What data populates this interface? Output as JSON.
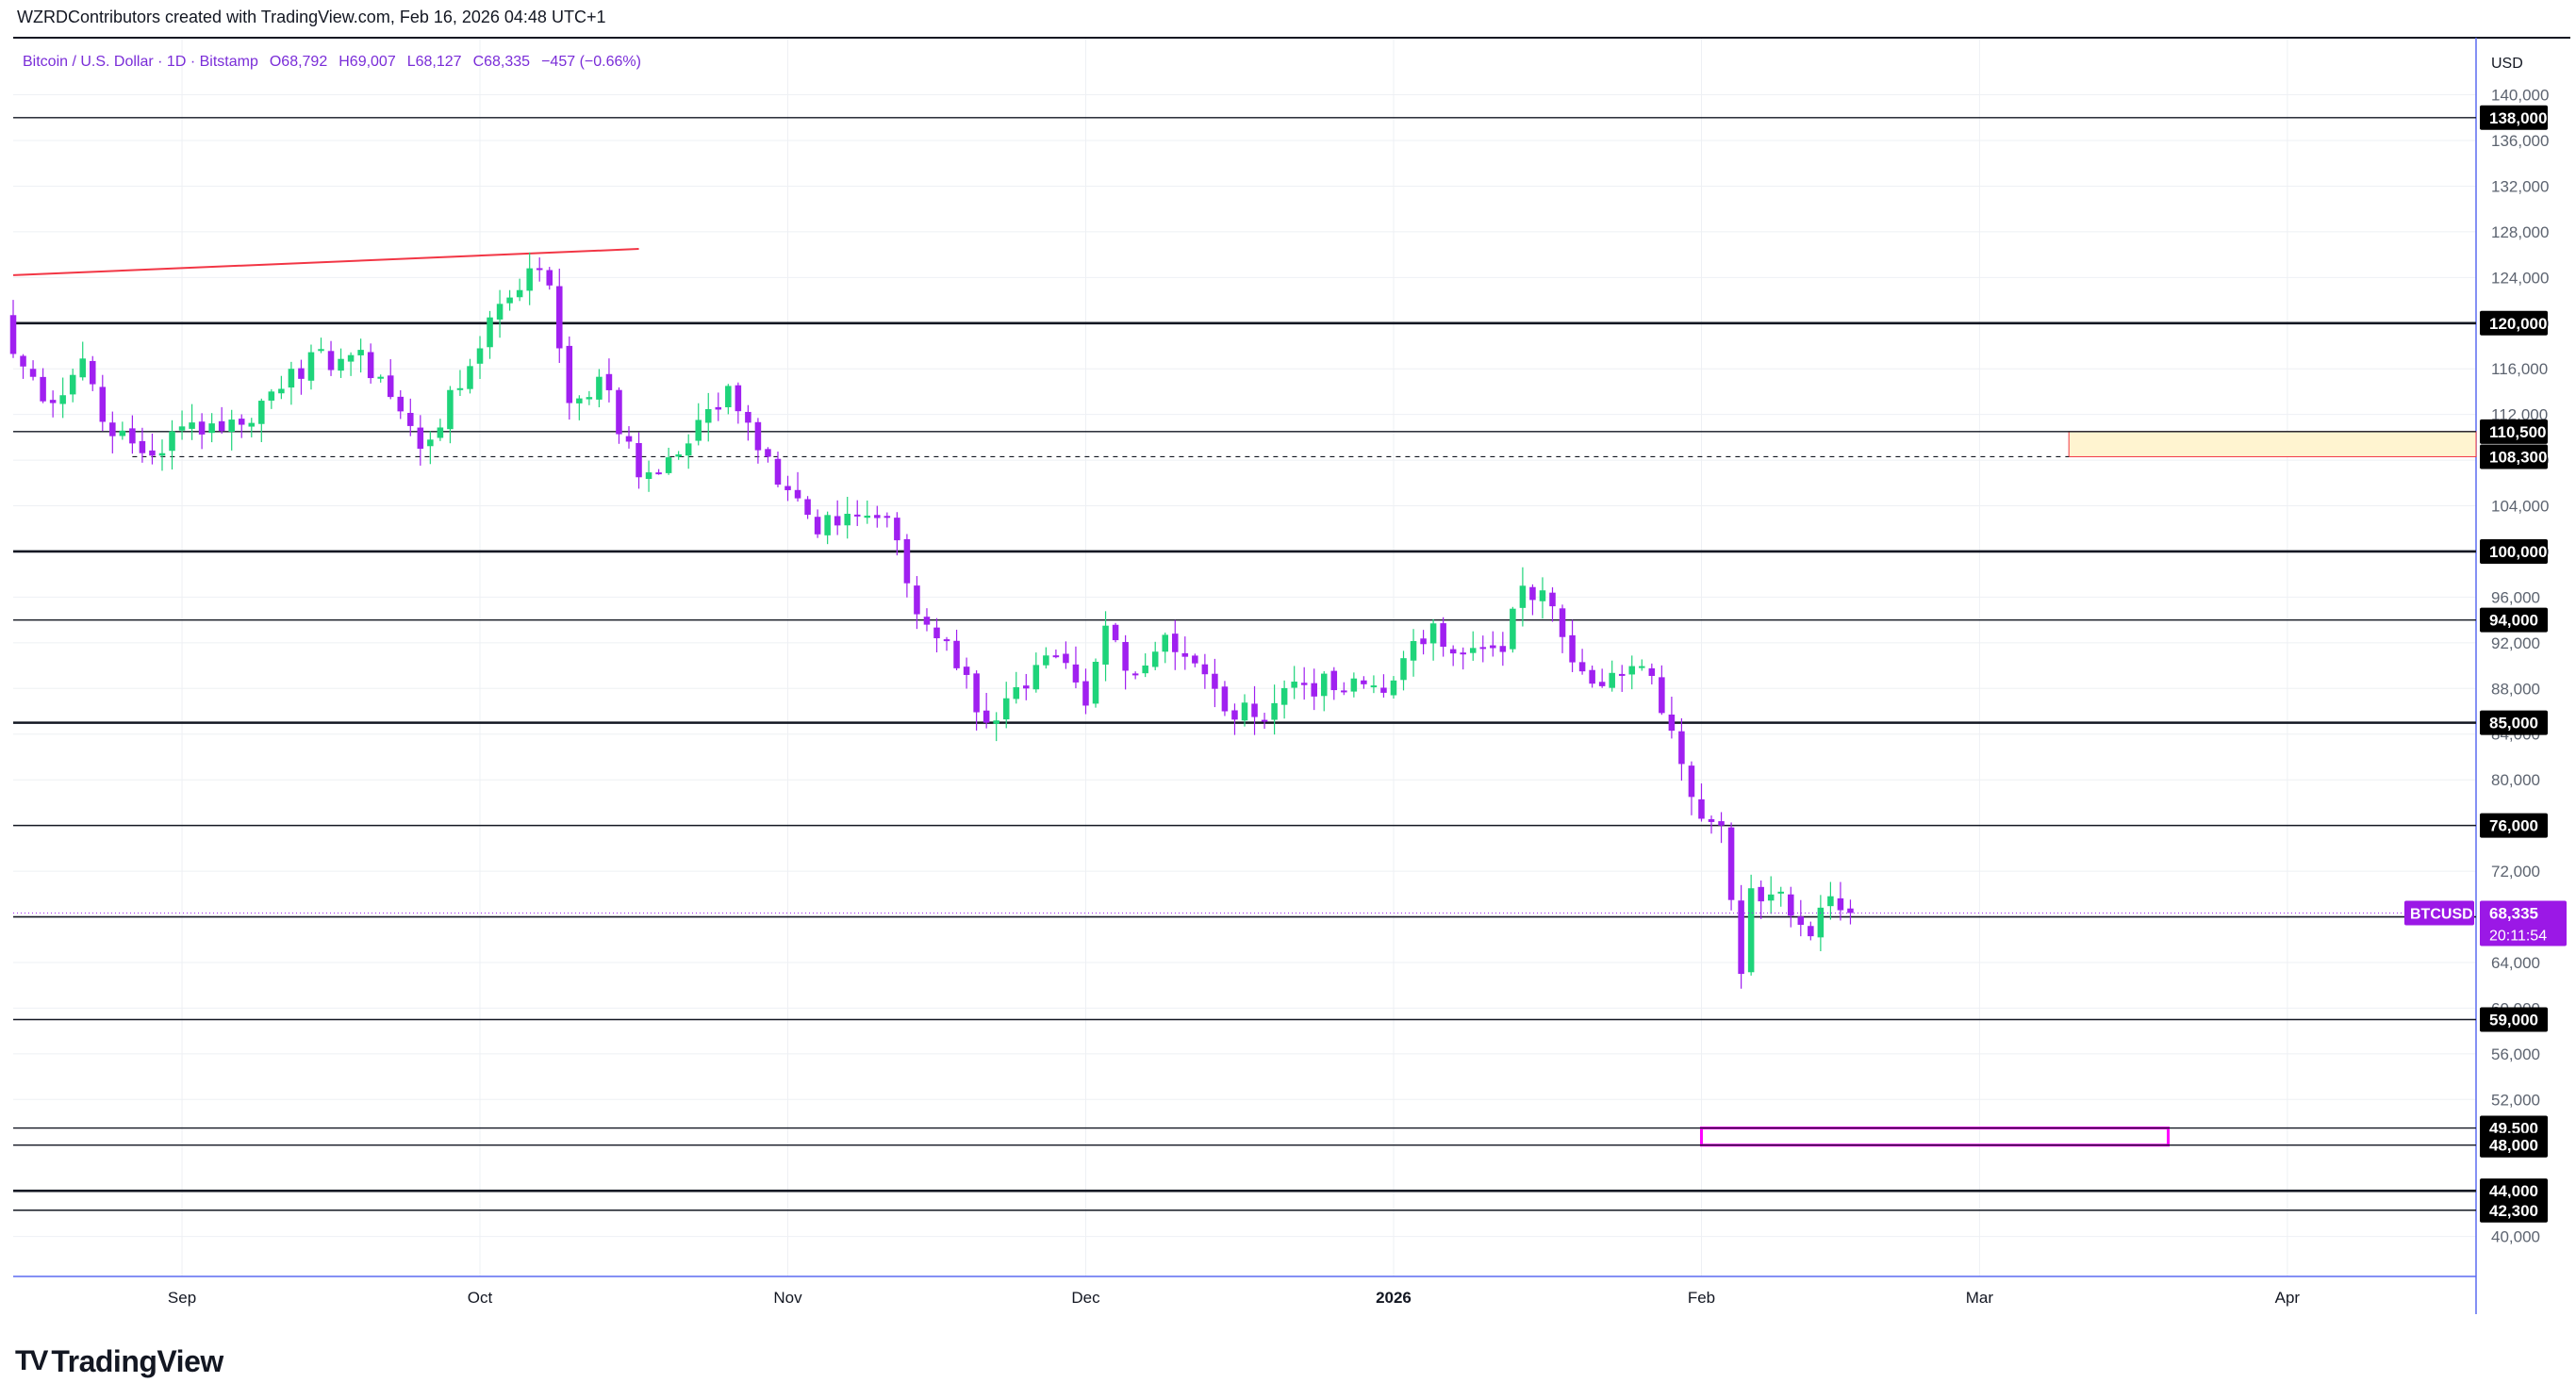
{
  "attribution": "WZRDContributors created with TradingView.com, Feb 16, 2026 04:48 UTC+1",
  "brand": "TradingView",
  "legend_line": {
    "symbol": "Bitcoin / U.S. Dollar · 1D · Bitstamp",
    "open": "O68,792",
    "high": "H69,007",
    "low": "L68,127",
    "close": "C68,335",
    "change": "−457 (−0.66%)"
  },
  "colors": {
    "up": "#1ed47a",
    "down": "#a020f0",
    "trendline": "#f23645",
    "box_upper_fill": "#fff4d0",
    "box_upper_stroke": "#f23645",
    "box_lower_stroke": "#ff00ff",
    "legend_text": "#7a2dd8",
    "price_label_bg": "#000000",
    "symbol_label_bg": "#9b18e6"
  },
  "chart_data": {
    "type": "candlestick",
    "currency_label": "USD",
    "ylim": [
      36500,
      145000
    ],
    "y_ticks": [
      40000,
      44000,
      48000,
      52000,
      56000,
      60000,
      64000,
      68000,
      72000,
      76000,
      80000,
      84000,
      88000,
      92000,
      96000,
      100000,
      104000,
      108000,
      112000,
      116000,
      120000,
      124000,
      128000,
      132000,
      136000,
      140000
    ],
    "y_tick_labels": [
      "40,000",
      "44,000",
      "48,000",
      "52,000",
      "56,000",
      "60,000",
      "64,000",
      "68,000",
      "72,000",
      "76,000",
      "80,000",
      "84,000",
      "88,000",
      "92,000",
      "96,000",
      "100,000",
      "104,000",
      "108,000",
      "112,000",
      "116,000",
      "120,000",
      "124,000",
      "128,000",
      "132,000",
      "136,000",
      "140,000"
    ],
    "x_start": "2025-08-15",
    "x_end": "2026-04-20",
    "x_labels": [
      {
        "date": "2025-09-01",
        "label": "Sep"
      },
      {
        "date": "2025-10-01",
        "label": "Oct"
      },
      {
        "date": "2025-11-01",
        "label": "Nov"
      },
      {
        "date": "2025-12-01",
        "label": "Dec"
      },
      {
        "date": "2026-01-01",
        "label": "2026"
      },
      {
        "date": "2026-02-01",
        "label": "Feb"
      },
      {
        "date": "2026-03-01",
        "label": "Mar"
      },
      {
        "date": "2026-04-01",
        "label": "Apr"
      }
    ],
    "horizontal_levels": [
      {
        "price": 138000,
        "label": "138,000",
        "weight": 1.4
      },
      {
        "price": 120000,
        "label": "120,000",
        "weight": 2.6
      },
      {
        "price": 110500,
        "label": "110,500",
        "weight": 1.4
      },
      {
        "price": 108300,
        "label": "108,300",
        "weight": 1.2,
        "dashed": true,
        "from": "2025-08-27",
        "to": "2026-03-10"
      },
      {
        "price": 100000,
        "label": "100,000",
        "weight": 2.6
      },
      {
        "price": 94000,
        "label": "94,000",
        "weight": 1.4
      },
      {
        "price": 85000,
        "label": "85,000",
        "weight": 2.6
      },
      {
        "price": 76000,
        "label": "76,000",
        "weight": 1.4
      },
      {
        "price": 68000,
        "label": "68,000",
        "weight": 1.6
      },
      {
        "price": 59000,
        "label": "59,000",
        "weight": 1.4
      },
      {
        "price": 49500,
        "label": "49,500",
        "weight": 1.4
      },
      {
        "price": 48000,
        "label": "48,000",
        "weight": 1.4
      },
      {
        "price": 44000,
        "label": "44,000",
        "weight": 2.6
      },
      {
        "price": 42300,
        "label": "42,300",
        "weight": 1.4
      }
    ],
    "trendline": {
      "from_date": "2025-08-15",
      "from_price": 124200,
      "to_date": "2025-10-17",
      "to_price": 126500
    },
    "zones": [
      {
        "from": "2026-03-10",
        "to": "2026-04-20",
        "top": 110500,
        "bottom": 108300,
        "kind": "upper"
      },
      {
        "from": "2026-02-01",
        "to": "2026-03-20",
        "top": 49500,
        "bottom": 48000,
        "kind": "lower"
      }
    ],
    "last_price": {
      "symbol": "BTCUSD",
      "price": 68335,
      "label": "68,335",
      "countdown": "20:11:54"
    },
    "closes": [
      {
        "date": "2025-08-15",
        "close": 117300
      },
      {
        "date": "2025-08-19",
        "close": 113000
      },
      {
        "date": "2025-08-22",
        "close": 116900
      },
      {
        "date": "2025-08-25",
        "close": 110100
      },
      {
        "date": "2025-08-29",
        "close": 108400
      },
      {
        "date": "2025-09-02",
        "close": 111300
      },
      {
        "date": "2025-09-07",
        "close": 111100
      },
      {
        "date": "2025-09-12",
        "close": 116000
      },
      {
        "date": "2025-09-18",
        "close": 117200
      },
      {
        "date": "2025-09-21",
        "close": 115300
      },
      {
        "date": "2025-09-25",
        "close": 109000
      },
      {
        "date": "2025-09-29",
        "close": 114300
      },
      {
        "date": "2025-10-02",
        "close": 120500
      },
      {
        "date": "2025-10-06",
        "close": 124800
      },
      {
        "date": "2025-10-08",
        "close": 123300
      },
      {
        "date": "2025-10-10",
        "close": 113000
      },
      {
        "date": "2025-10-13",
        "close": 115300
      },
      {
        "date": "2025-10-17",
        "close": 106500
      },
      {
        "date": "2025-10-21",
        "close": 108500
      },
      {
        "date": "2025-10-26",
        "close": 114500
      },
      {
        "date": "2025-10-30",
        "close": 108300
      },
      {
        "date": "2025-11-04",
        "close": 101500
      },
      {
        "date": "2025-11-07",
        "close": 103300
      },
      {
        "date": "2025-11-11",
        "close": 103000
      },
      {
        "date": "2025-11-14",
        "close": 94500
      },
      {
        "date": "2025-11-17",
        "close": 92200
      },
      {
        "date": "2025-11-21",
        "close": 85000
      },
      {
        "date": "2025-11-25",
        "close": 88000
      },
      {
        "date": "2025-11-28",
        "close": 90800
      },
      {
        "date": "2025-12-01",
        "close": 86500
      },
      {
        "date": "2025-12-03",
        "close": 93500
      },
      {
        "date": "2025-12-06",
        "close": 89300
      },
      {
        "date": "2025-12-09",
        "close": 92700
      },
      {
        "date": "2025-12-12",
        "close": 90200
      },
      {
        "date": "2025-12-15",
        "close": 86000
      },
      {
        "date": "2025-12-18",
        "close": 85500
      },
      {
        "date": "2025-12-22",
        "close": 88600
      },
      {
        "date": "2025-12-27",
        "close": 87800
      },
      {
        "date": "2026-01-01",
        "close": 88700
      },
      {
        "date": "2026-01-05",
        "close": 93700
      },
      {
        "date": "2026-01-08",
        "close": 91000
      },
      {
        "date": "2026-01-12",
        "close": 91200
      },
      {
        "date": "2026-01-14",
        "close": 97000
      },
      {
        "date": "2026-01-17",
        "close": 95200
      },
      {
        "date": "2026-01-20",
        "close": 89500
      },
      {
        "date": "2026-01-24",
        "close": 89200
      },
      {
        "date": "2026-01-27",
        "close": 89100
      },
      {
        "date": "2026-01-29",
        "close": 84300
      },
      {
        "date": "2026-01-31",
        "close": 78500
      },
      {
        "date": "2026-02-03",
        "close": 76000
      },
      {
        "date": "2026-02-05",
        "close": 63000
      },
      {
        "date": "2026-02-06",
        "close": 70500
      },
      {
        "date": "2026-02-09",
        "close": 70200
      },
      {
        "date": "2026-02-11",
        "close": 67300
      },
      {
        "date": "2026-02-12",
        "close": 66300
      },
      {
        "date": "2026-02-13",
        "close": 68800
      },
      {
        "date": "2026-02-14",
        "close": 69800
      },
      {
        "date": "2026-02-16",
        "close": 68335
      }
    ]
  }
}
